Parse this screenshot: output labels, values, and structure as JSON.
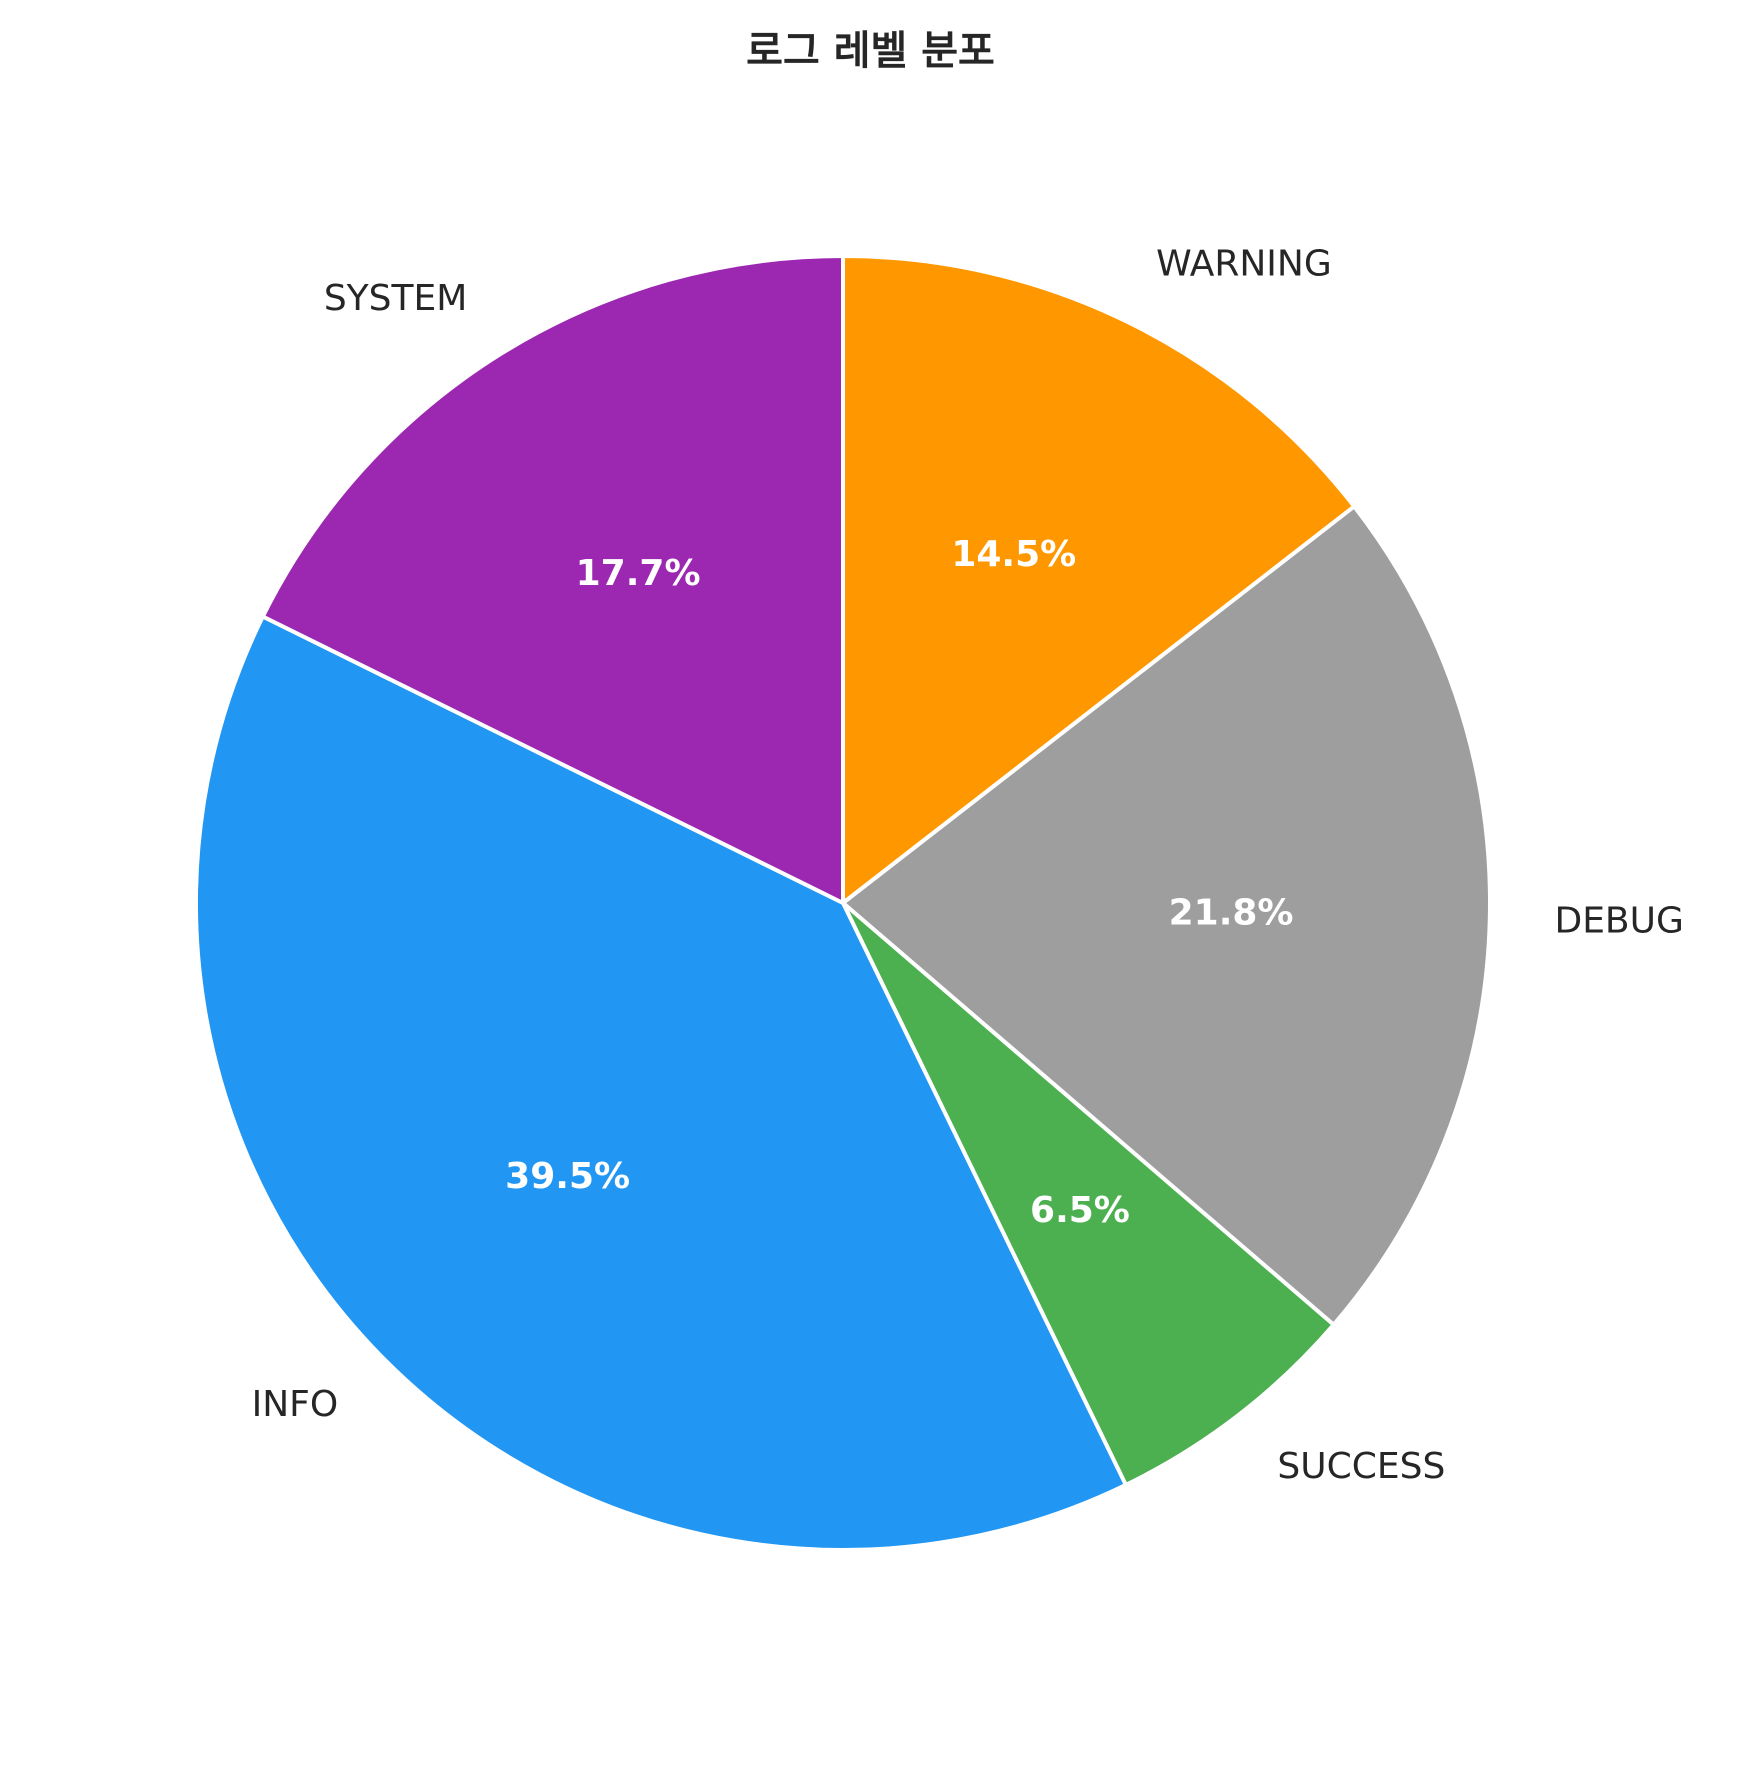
{
  "chart_data": {
    "type": "pie",
    "title": "로그 레벨 분포",
    "start_angle_deg": 90,
    "direction": "clockwise",
    "slices": [
      {
        "label": "WARNING",
        "value": 14.5,
        "pct_label": "14.5%",
        "color": "#FF9800"
      },
      {
        "label": "DEBUG",
        "value": 21.8,
        "pct_label": "21.8%",
        "color": "#9E9E9E"
      },
      {
        "label": "SUCCESS",
        "value": 6.5,
        "pct_label": "6.5%",
        "color": "#4CAF50"
      },
      {
        "label": "INFO",
        "value": 39.5,
        "pct_label": "39.5%",
        "color": "#2196F3"
      },
      {
        "label": "SYSTEM",
        "value": 17.7,
        "pct_label": "17.7%",
        "color": "#9C27B0"
      }
    ],
    "edge_color": "#FFFFFF",
    "legend": "none"
  }
}
